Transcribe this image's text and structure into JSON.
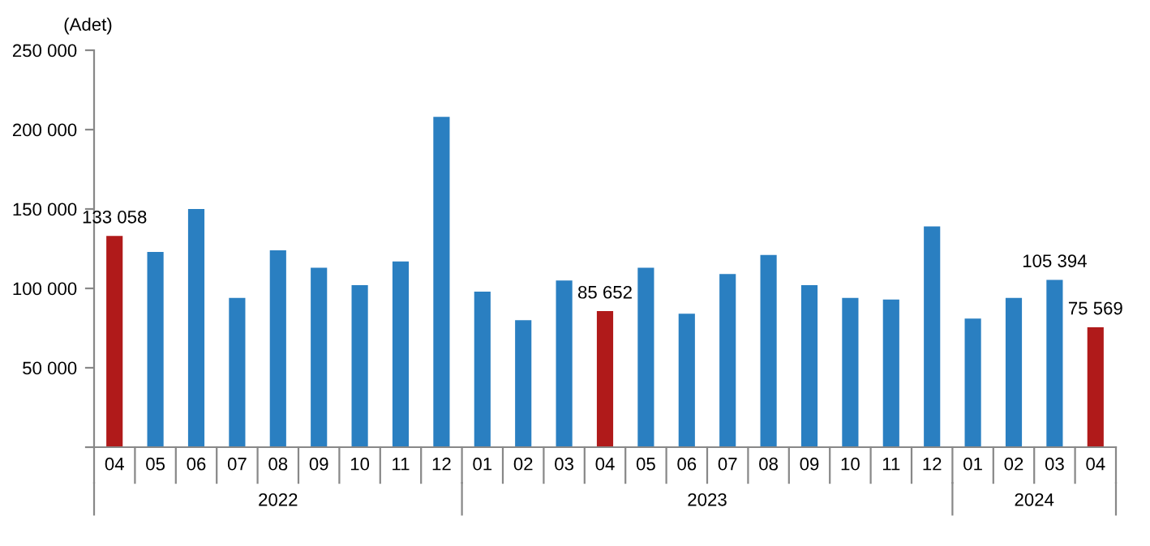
{
  "chart_data": {
    "type": "bar",
    "ylabel": "(Adet)",
    "categories": [
      "04",
      "05",
      "06",
      "07",
      "08",
      "09",
      "10",
      "11",
      "12",
      "01",
      "02",
      "03",
      "04",
      "05",
      "06",
      "07",
      "08",
      "09",
      "10",
      "11",
      "12",
      "01",
      "02",
      "03",
      "04"
    ],
    "values": [
      133058,
      123000,
      150000,
      94000,
      124000,
      113000,
      102000,
      117000,
      208000,
      98000,
      80000,
      105000,
      85652,
      113000,
      84000,
      109000,
      121000,
      102000,
      94000,
      93000,
      139000,
      81000,
      94000,
      105394,
      75569
    ],
    "colors": [
      "#b01a1a",
      "#2a7fc1",
      "#2a7fc1",
      "#2a7fc1",
      "#2a7fc1",
      "#2a7fc1",
      "#2a7fc1",
      "#2a7fc1",
      "#2a7fc1",
      "#2a7fc1",
      "#2a7fc1",
      "#2a7fc1",
      "#b01a1a",
      "#2a7fc1",
      "#2a7fc1",
      "#2a7fc1",
      "#2a7fc1",
      "#2a7fc1",
      "#2a7fc1",
      "#2a7fc1",
      "#2a7fc1",
      "#2a7fc1",
      "#2a7fc1",
      "#2a7fc1",
      "#b01a1a"
    ],
    "value_labels": [
      "133 058",
      null,
      null,
      null,
      null,
      null,
      null,
      null,
      null,
      null,
      null,
      null,
      "85 652",
      null,
      null,
      null,
      null,
      null,
      null,
      null,
      null,
      null,
      null,
      "105 394",
      "75 569"
    ],
    "annotations": [
      "2022",
      "2023",
      "2024"
    ],
    "ylim": [
      0,
      250000
    ],
    "yticks": [
      {
        "value": 0,
        "label": null
      },
      {
        "value": 50000,
        "label": "50 000"
      },
      {
        "value": 100000,
        "label": "100 000"
      },
      {
        "value": 150000,
        "label": "150 000"
      },
      {
        "value": 200000,
        "label": "200 000"
      },
      {
        "value": 250000,
        "label": "250 000"
      }
    ],
    "grid": false,
    "legend": false
  }
}
